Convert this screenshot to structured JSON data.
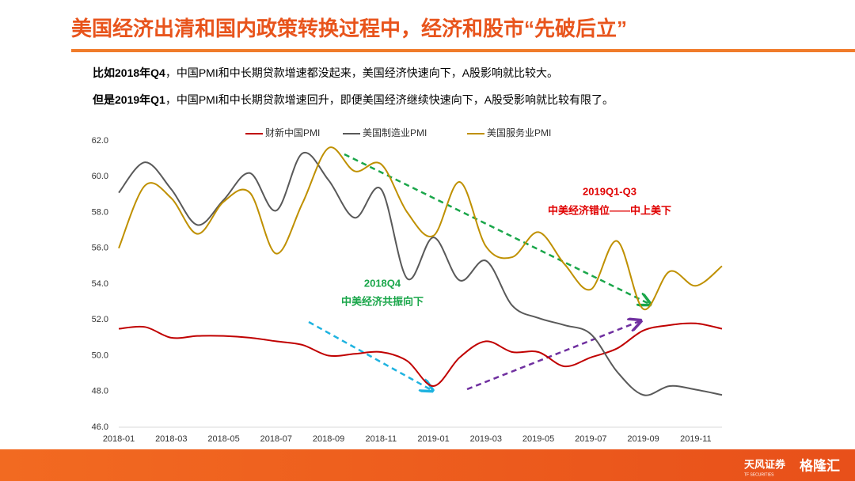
{
  "header": {
    "title": "美国经济出清和国内政策转换过程中，经济和股市“先破后立”"
  },
  "text_lines": [
    {
      "bold": "比如2018年Q4",
      "rest": "，中国PMI和中长期贷款增速都没起来，美国经济快速向下，A股影响就比较大。"
    },
    {
      "bold": "但是2019年Q1",
      "rest": "，中国PMI和中长期贷款增速回升，即便美国经济继续快速向下，A股受影响就比较有限了。"
    }
  ],
  "chart_data": {
    "type": "line",
    "categories": [
      "2018-01",
      null,
      "2018-03",
      null,
      "2018-05",
      null,
      "2018-07",
      null,
      "2018-09",
      null,
      "2018-11",
      null,
      "2019-01",
      null,
      "2019-03",
      null,
      "2019-05",
      null,
      "2019-07",
      null,
      "2019-09",
      null,
      "2019-11",
      null
    ],
    "series": [
      {
        "name": "财新中国PMI",
        "color": "#c00000",
        "values": [
          51.5,
          51.6,
          51.0,
          51.1,
          51.1,
          51.0,
          50.8,
          50.6,
          50.0,
          50.1,
          50.2,
          49.7,
          48.3,
          49.9,
          50.8,
          50.2,
          50.2,
          49.4,
          49.9,
          50.4,
          51.4,
          51.7,
          51.8,
          51.5
        ]
      },
      {
        "name": "美国制造业PMI",
        "color": "#595959",
        "values": [
          59.1,
          60.8,
          59.3,
          57.3,
          58.7,
          60.2,
          58.1,
          61.3,
          59.8,
          57.7,
          59.3,
          54.3,
          56.6,
          54.2,
          55.3,
          52.8,
          52.1,
          51.7,
          51.2,
          49.1,
          47.8,
          48.3,
          48.1,
          47.8
        ]
      },
      {
        "name": "美国服务业PMI",
        "color": "#bf9000",
        "values": [
          56.0,
          59.5,
          58.8,
          56.8,
          58.6,
          59.1,
          55.7,
          58.5,
          61.6,
          60.3,
          60.7,
          58.0,
          56.7,
          59.7,
          56.1,
          55.5,
          56.9,
          55.1,
          53.7,
          56.4,
          52.6,
          54.7,
          53.9,
          55.0
        ]
      }
    ],
    "ylim": [
      46,
      62
    ],
    "yticks": [
      {
        "value": 46,
        "label": "46.0"
      },
      {
        "value": 48,
        "label": "48.0"
      },
      {
        "value": 50,
        "label": "50.0"
      },
      {
        "value": 52,
        "label": "52.0"
      },
      {
        "value": 54,
        "label": "54.0"
      },
      {
        "value": 56,
        "label": "56.0"
      },
      {
        "value": 58,
        "label": "58.0"
      },
      {
        "value": 60,
        "label": "60.0"
      },
      {
        "value": 62,
        "label": "62.0"
      }
    ],
    "legend": "top",
    "annotations": [
      "2019Q1-Q3",
      "中美经济错位——中上美下",
      "2018Q4",
      "中美经济共振向下"
    ]
  },
  "footer": {
    "brand": "天风证券",
    "brand_en": "TF SECURITIES",
    "watermark": "格隆汇"
  }
}
